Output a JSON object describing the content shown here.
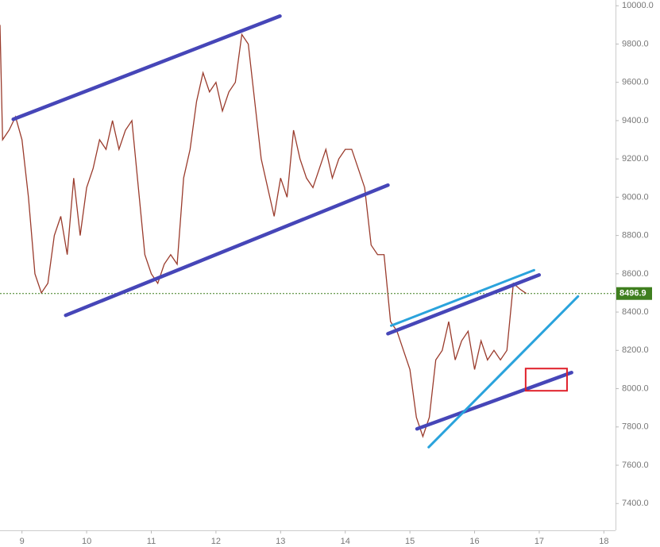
{
  "chart_data": {
    "type": "line",
    "x": [
      8.66,
      8.7,
      8.8,
      8.9,
      9.0,
      9.1,
      9.2,
      9.3,
      9.4,
      9.5,
      9.6,
      9.7,
      9.8,
      9.9,
      10.0,
      10.1,
      10.2,
      10.3,
      10.4,
      10.5,
      10.6,
      10.7,
      10.8,
      10.9,
      11.0,
      11.1,
      11.2,
      11.3,
      11.4,
      11.5,
      11.6,
      11.7,
      11.8,
      11.9,
      12.0,
      12.1,
      12.2,
      12.3,
      12.4,
      12.5,
      12.6,
      12.7,
      12.8,
      12.9,
      13.0,
      13.1,
      13.2,
      13.3,
      13.4,
      13.5,
      13.6,
      13.7,
      13.8,
      13.9,
      14.0,
      14.1,
      14.2,
      14.3,
      14.4,
      14.5,
      14.6,
      14.7,
      14.8,
      14.9,
      15.0,
      15.1,
      15.2,
      15.3,
      15.4,
      15.5,
      15.6,
      15.7,
      15.8,
      15.9,
      16.0,
      16.1,
      16.2,
      16.3,
      16.4,
      16.5,
      16.6,
      16.7,
      16.8
    ],
    "values": [
      9900,
      9300,
      9350,
      9420,
      9300,
      9000,
      8600,
      8500,
      8550,
      8800,
      8900,
      8700,
      9100,
      8800,
      9050,
      9150,
      9300,
      9250,
      9400,
      9250,
      9350,
      9400,
      9050,
      8700,
      8600,
      8550,
      8650,
      8700,
      8650,
      9100,
      9250,
      9500,
      9650,
      9550,
      9600,
      9450,
      9550,
      9600,
      9850,
      9800,
      9500,
      9200,
      9050,
      8900,
      9100,
      9000,
      9350,
      9200,
      9100,
      9050,
      9150,
      9250,
      9100,
      9200,
      9250,
      9250,
      9150,
      9050,
      8750,
      8700,
      8700,
      8350,
      8300,
      8200,
      8100,
      7850,
      7750,
      7850,
      8150,
      8200,
      8350,
      8150,
      8250,
      8300,
      8100,
      8250,
      8150,
      8200,
      8150,
      8200,
      8550,
      8520,
      8497
    ],
    "color": "#9a3b2c",
    "last_price": 8496.9,
    "last_price_color": "#3f7f1f",
    "xlim": [
      8.66,
      18.18
    ],
    "xticks": [
      9,
      10,
      11,
      12,
      13,
      14,
      15,
      16,
      17,
      18
    ],
    "ylim": [
      7260,
      10030
    ],
    "yticks": [
      {
        "value": 7400,
        "label": "7400.0"
      },
      {
        "value": 7600,
        "label": "7600.0"
      },
      {
        "value": 7800,
        "label": "7800.0"
      },
      {
        "value": 8000,
        "label": "8000.0"
      },
      {
        "value": 8200,
        "label": "8200.0"
      },
      {
        "value": 8400,
        "label": "8400.0"
      },
      {
        "value": 8600,
        "label": "8600.0"
      },
      {
        "value": 8800,
        "label": "8800.0"
      },
      {
        "value": 9000,
        "label": "9000.0"
      },
      {
        "value": 9200,
        "label": "9200.0"
      },
      {
        "value": 9400,
        "label": "9400.0"
      },
      {
        "value": 9600,
        "label": "9600.0"
      },
      {
        "value": 9800,
        "label": "9800.0"
      },
      {
        "value": 10000,
        "label": "10000.0"
      }
    ],
    "trendlines": [
      {
        "color": "#4646b8",
        "x": [
          8.865,
          12.99
        ],
        "y": [
          9407,
          9946
        ]
      },
      {
        "color": "#4646b8",
        "x": [
          9.676,
          14.66
        ],
        "y": [
          8383,
          9063
        ]
      },
      {
        "color": "#2aa3dc",
        "x": [
          14.71,
          16.92
        ],
        "y": [
          8329,
          8619
        ]
      },
      {
        "color": "#4646b8",
        "x": [
          14.66,
          16.998
        ],
        "y": [
          8287,
          8594
        ]
      },
      {
        "color": "#4646b8",
        "x": [
          15.11,
          17.5
        ],
        "y": [
          7790,
          8084
        ]
      },
      {
        "color": "#2aa3dc",
        "x": [
          15.29,
          17.6
        ],
        "y": [
          7694,
          8482
        ]
      }
    ],
    "boxes": [
      {
        "color": "#e0202a",
        "x": [
          16.79,
          17.43
        ],
        "y": [
          7989,
          8105
        ]
      }
    ]
  }
}
